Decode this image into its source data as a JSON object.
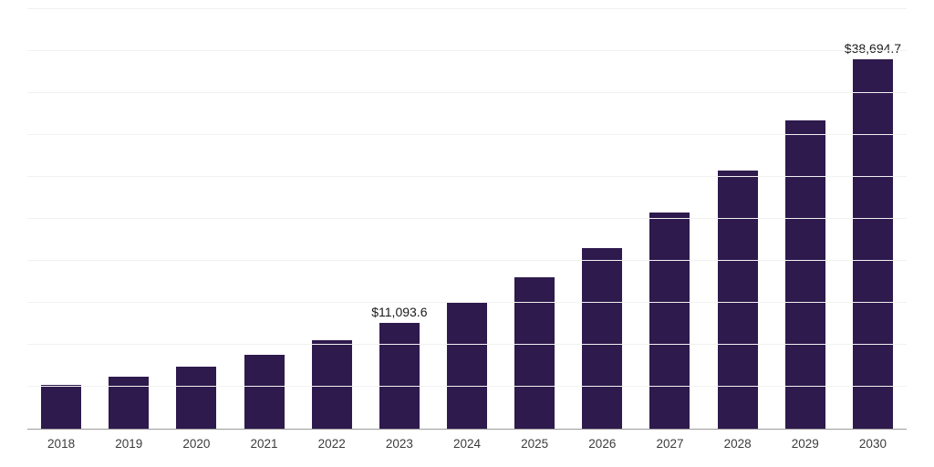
{
  "chart_data": {
    "type": "bar",
    "title": "",
    "xlabel": "",
    "ylabel": "",
    "categories": [
      "2018",
      "2019",
      "2020",
      "2021",
      "2022",
      "2023",
      "2024",
      "2025",
      "2026",
      "2027",
      "2028",
      "2029",
      "2030"
    ],
    "values": [
      4550,
      5440,
      6500,
      7770,
      9290,
      11093.6,
      13260,
      15850,
      18950,
      22650,
      27080,
      32370,
      38694.7
    ],
    "data_labels": [
      "",
      "",
      "",
      "",
      "",
      "$11,093.6",
      "",
      "",
      "",
      "",
      "",
      "",
      "$38,694.7"
    ],
    "ylim": [
      0,
      44000
    ],
    "grid": true,
    "gridline_count": 10,
    "legend": "none",
    "bar_color": "#2e1a4d",
    "gridline_color": "#f1f1f1",
    "axis_line_color": "#9b9b9b",
    "tick_label_color": "#3c3c3c",
    "data_label_color": "#1a1a1a"
  }
}
